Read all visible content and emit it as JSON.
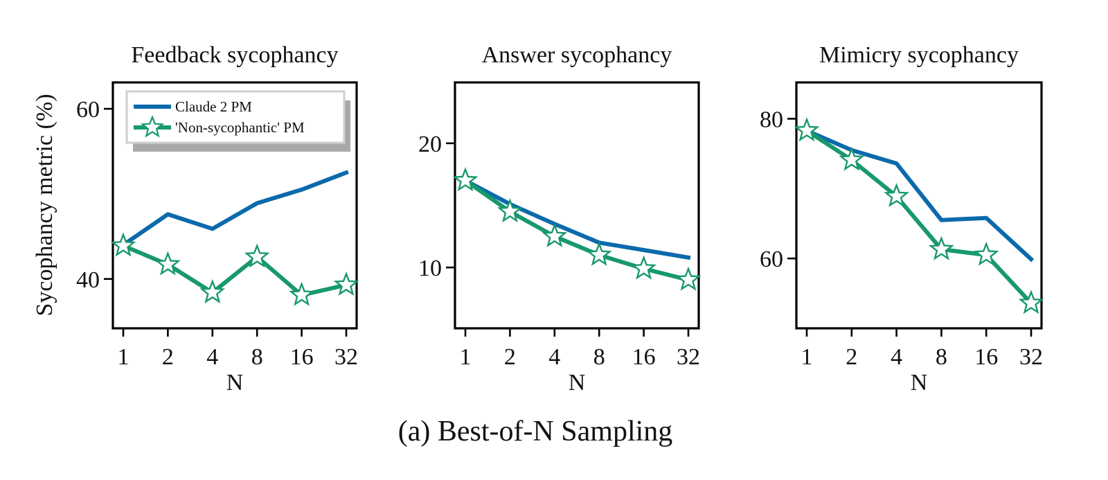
{
  "figure": {
    "caption": "(a) Best-of-N Sampling",
    "shared_ylabel": "Sycophancy metric (%)"
  },
  "colors": {
    "claude": "#0a6aab",
    "nonsyc": "#18996b"
  },
  "chart_data": [
    {
      "type": "line",
      "title": "Feedback sycophancy",
      "xlabel": "N",
      "ylabel": "Sycophancy metric (%)",
      "categories": [
        "1",
        "2",
        "4",
        "8",
        "16",
        "32"
      ],
      "ylim": [
        34.2,
        63.1
      ],
      "yticks": [
        40,
        60
      ],
      "legend": {
        "position": "top-left",
        "entries": [
          "Claude 2 PM",
          "'Non-sycophantic' PM"
        ]
      },
      "series": [
        {
          "name": "Claude 2 PM",
          "marker": "none",
          "values": [
            44.0,
            47.6,
            45.9,
            48.9,
            50.5,
            52.5
          ]
        },
        {
          "name": "'Non-sycophantic' PM",
          "marker": "star",
          "values": [
            43.9,
            41.7,
            38.4,
            42.6,
            38.1,
            39.3
          ]
        }
      ]
    },
    {
      "type": "line",
      "title": "Answer sycophancy",
      "xlabel": "N",
      "ylabel": "",
      "categories": [
        "1",
        "2",
        "4",
        "8",
        "16",
        "32"
      ],
      "ylim": [
        5.1,
        24.9
      ],
      "yticks": [
        10,
        20
      ],
      "series": [
        {
          "name": "Claude 2 PM",
          "marker": "none",
          "values": [
            17.0,
            15.1,
            13.5,
            12.0,
            11.4,
            10.8
          ]
        },
        {
          "name": "'Non-sycophantic' PM",
          "marker": "star",
          "values": [
            17.0,
            14.5,
            12.5,
            11.0,
            9.9,
            9.0
          ]
        }
      ]
    },
    {
      "type": "line",
      "title": "Mimicry sycophancy",
      "xlabel": "N",
      "ylabel": "",
      "categories": [
        "1",
        "2",
        "4",
        "8",
        "16",
        "32"
      ],
      "ylim": [
        50.0,
        85.2
      ],
      "yticks": [
        60,
        80
      ],
      "series": [
        {
          "name": "Claude 2 PM",
          "marker": "none",
          "values": [
            78.3,
            75.5,
            73.6,
            65.5,
            65.8,
            59.9
          ]
        },
        {
          "name": "'Non-sycophantic' PM",
          "marker": "star",
          "values": [
            78.3,
            74.1,
            68.9,
            61.3,
            60.5,
            53.6
          ]
        }
      ]
    }
  ]
}
